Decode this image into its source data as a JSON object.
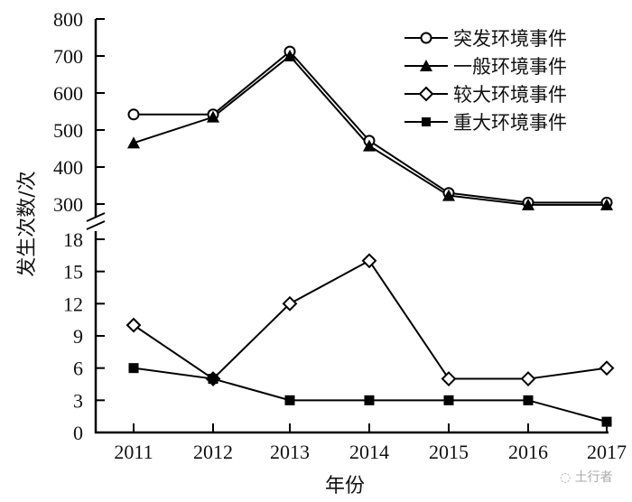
{
  "chart_data": {
    "type": "line",
    "title": "",
    "xlabel": "年份",
    "ylabel": "发生次数/次",
    "categories": [
      "2011",
      "2012",
      "2013",
      "2014",
      "2015",
      "2016",
      "2017"
    ],
    "y_axis_break": true,
    "upper_panel": {
      "ylim": [
        300,
        800
      ],
      "yticks": [
        "300",
        "400",
        "500",
        "600",
        "700",
        "800"
      ],
      "series": [
        {
          "name": "突发环境事件",
          "marker": "open-circle",
          "values": [
            542,
            542,
            712,
            471,
            330,
            304,
            304
          ]
        },
        {
          "name": "一般环境事件",
          "marker": "filled-triangle",
          "values": [
            465,
            535,
            700,
            457,
            323,
            298,
            298
          ]
        }
      ]
    },
    "lower_panel": {
      "ylim": [
        0,
        18
      ],
      "yticks": [
        "0",
        "3",
        "6",
        "9",
        "12",
        "15",
        "18"
      ],
      "series": [
        {
          "name": "较大环境事件",
          "marker": "open-diamond",
          "values": [
            10,
            5,
            12,
            16,
            5,
            5,
            6
          ]
        },
        {
          "name": "重大环境事件",
          "marker": "filled-square",
          "values": [
            6,
            5,
            3,
            3,
            3,
            3,
            1
          ]
        }
      ]
    },
    "legend": [
      "突发环境事件",
      "一般环境事件",
      "较大环境事件",
      "重大环境事件"
    ],
    "legend_position": "upper right",
    "grid": false
  },
  "legend": {
    "items": [
      {
        "label": "突发环境事件",
        "marker": "open-circle"
      },
      {
        "label": "一般环境事件",
        "marker": "filled-triangle"
      },
      {
        "label": "较大环境事件",
        "marker": "open-diamond"
      },
      {
        "label": "重大环境事件",
        "marker": "filled-square"
      }
    ]
  },
  "axes": {
    "xlabel": "年份",
    "ylabel": "发生次数/次"
  },
  "watermark": "土行者"
}
